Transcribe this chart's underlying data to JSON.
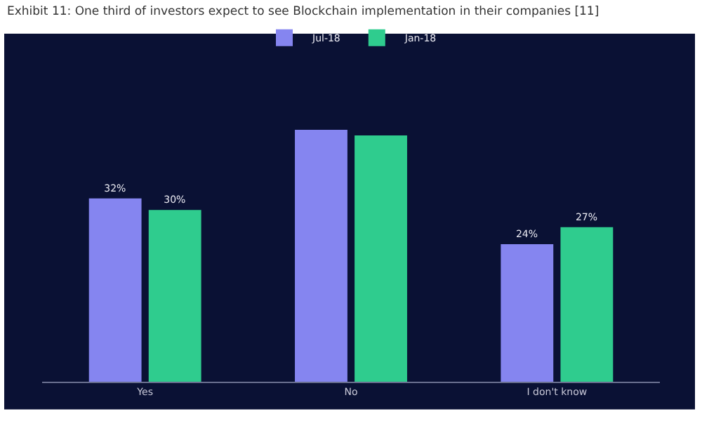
{
  "chart_data": {
    "type": "bar",
    "title": "Exhibit 11: One third of investors expect to see Blockchain implementation in their companies [11]",
    "categories": [
      "Yes",
      "No",
      "I don't know"
    ],
    "series": [
      {
        "name": "Jul-18",
        "color": "#8585f0",
        "values": [
          32,
          44,
          24
        ],
        "value_labels": [
          "32%",
          null,
          "24%"
        ]
      },
      {
        "name": "Jan-18",
        "color": "#2fcc8e",
        "values": [
          30,
          43,
          27
        ],
        "value_labels": [
          "30%",
          null,
          "27%"
        ]
      }
    ],
    "legend": "top",
    "grid": false
  }
}
